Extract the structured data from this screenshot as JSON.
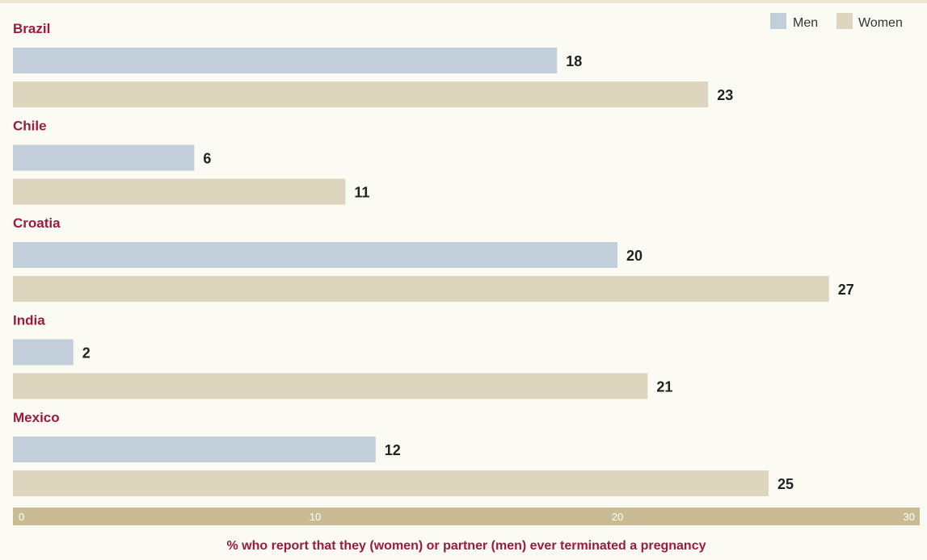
{
  "chart_data": {
    "type": "bar",
    "orientation": "horizontal",
    "categories": [
      "Brazil",
      "Chile",
      "Croatia",
      "India",
      "Mexico"
    ],
    "series": [
      {
        "name": "Men",
        "values": [
          18,
          6,
          20,
          2,
          12
        ],
        "color": "#c2cfda"
      },
      {
        "name": "Women",
        "values": [
          23,
          11,
          27,
          21,
          25
        ],
        "color": "#ddd5bd"
      }
    ],
    "xlabel": "% who report that they (women) or partner (men) ever terminated a pregnancy",
    "xlim": [
      0,
      30
    ],
    "xticks": [
      0,
      10,
      20,
      30
    ],
    "legend_position": "top-right",
    "grid": false,
    "colors": {
      "label": "#9b1b3c",
      "axis_band": "#c9bb93",
      "background": "#fbfaf3"
    }
  }
}
